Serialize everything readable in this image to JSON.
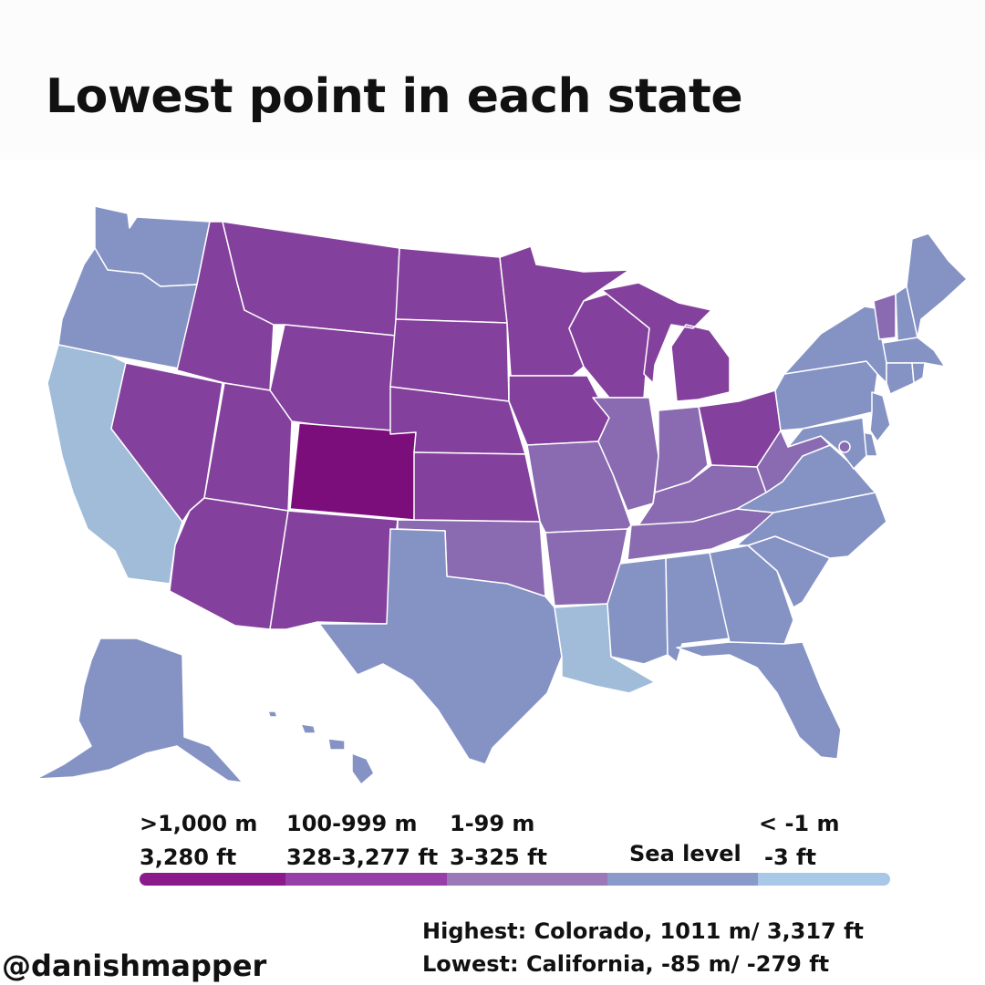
{
  "title": "Lowest point in each state",
  "colors": {
    "over_1000m": "#7b0e7a",
    "100_999m": "#84409d",
    "1_99m": "#8a6ab0",
    "sea_level": "#8593c4",
    "below_sea": "#a0bcd9",
    "legend_bar": [
      "#8b1a8b",
      "#963fa8",
      "#9b78b8",
      "#8a9aca",
      "#a9c8e8"
    ]
  },
  "legend": {
    "bins": [
      {
        "line1": ">1,000 m",
        "line2": "3,280 ft"
      },
      {
        "line1": "100-999 m",
        "line2": "328-3,277 ft"
      },
      {
        "line1": "1-99 m",
        "line2": "3-325 ft"
      },
      {
        "line1": "Sea level",
        "line2": ""
      },
      {
        "line1": "< -1 m",
        "line2": "-3 ft"
      }
    ]
  },
  "stats": {
    "highest": "Highest: Colorado, 1011 m/ 3,317 ft",
    "lowest": "Lowest: California, -85 m/ -279 ft"
  },
  "credit": "@danishmapper",
  "states": {
    "WA": "sea_level",
    "OR": "sea_level",
    "CA": "below_sea",
    "NV": "100_999m",
    "ID": "100_999m",
    "MT": "100_999m",
    "WY": "100_999m",
    "UT": "100_999m",
    "AZ": "100_999m",
    "CO": "over_1000m",
    "NM": "100_999m",
    "ND": "100_999m",
    "SD": "100_999m",
    "NE": "100_999m",
    "KS": "100_999m",
    "OK": "1_99m",
    "TX": "sea_level",
    "MN": "100_999m",
    "IA": "100_999m",
    "MO": "1_99m",
    "AR": "1_99m",
    "LA": "below_sea",
    "WI": "100_999m",
    "IL": "1_99m",
    "MI": "100_999m",
    "IN": "1_99m",
    "OH": "100_999m",
    "KY": "1_99m",
    "TN": "1_99m",
    "MS": "sea_level",
    "AL": "sea_level",
    "GA": "sea_level",
    "FL": "sea_level",
    "SC": "sea_level",
    "NC": "sea_level",
    "VA": "sea_level",
    "WV": "1_99m",
    "PA": "sea_level",
    "NY": "sea_level",
    "VT": "1_99m",
    "NH": "sea_level",
    "ME": "sea_level",
    "MA": "sea_level",
    "CT": "sea_level",
    "RI": "sea_level",
    "NJ": "sea_level",
    "DE": "sea_level",
    "MD": "sea_level",
    "DC": "1_99m",
    "AK": "sea_level",
    "HI": "sea_level"
  }
}
